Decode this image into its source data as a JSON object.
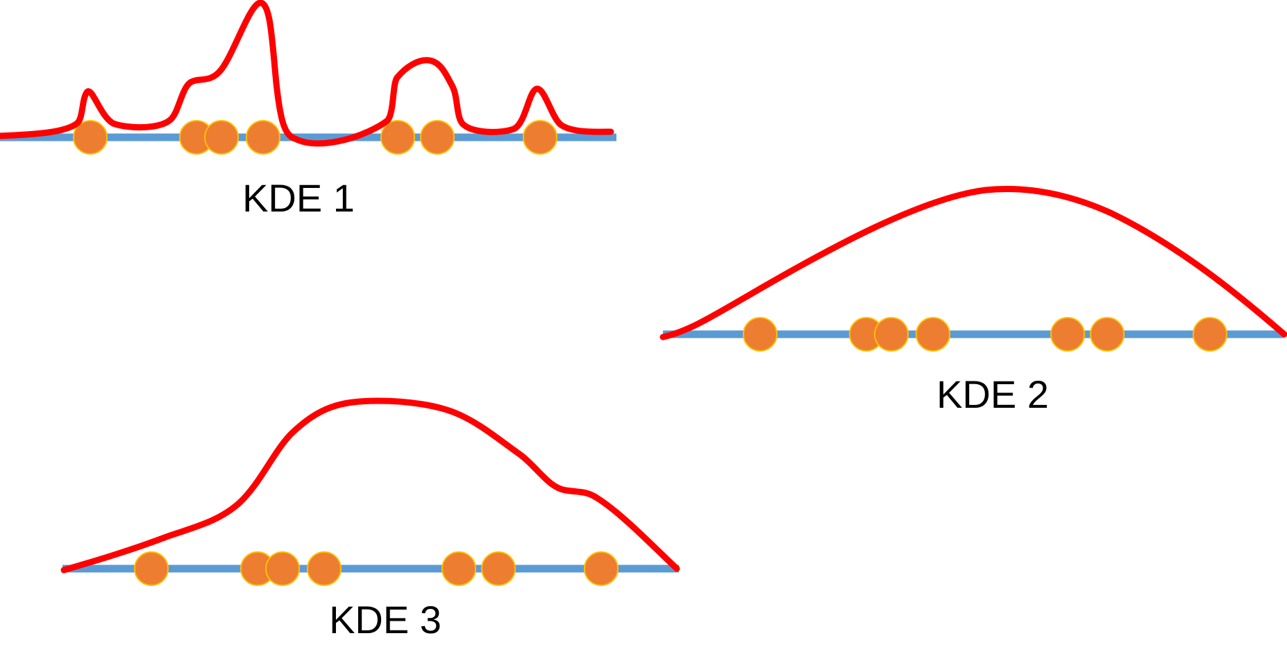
{
  "colors": {
    "axis": "#5B9BD5",
    "curve": "#FF0000",
    "point_fill": "#ED7D31",
    "point_stroke": "#FFC000",
    "label": "#000000"
  },
  "panels": [
    {
      "label": "KDE 1"
    },
    {
      "label": "KDE 2"
    },
    {
      "label": "KDE 3"
    }
  ]
}
